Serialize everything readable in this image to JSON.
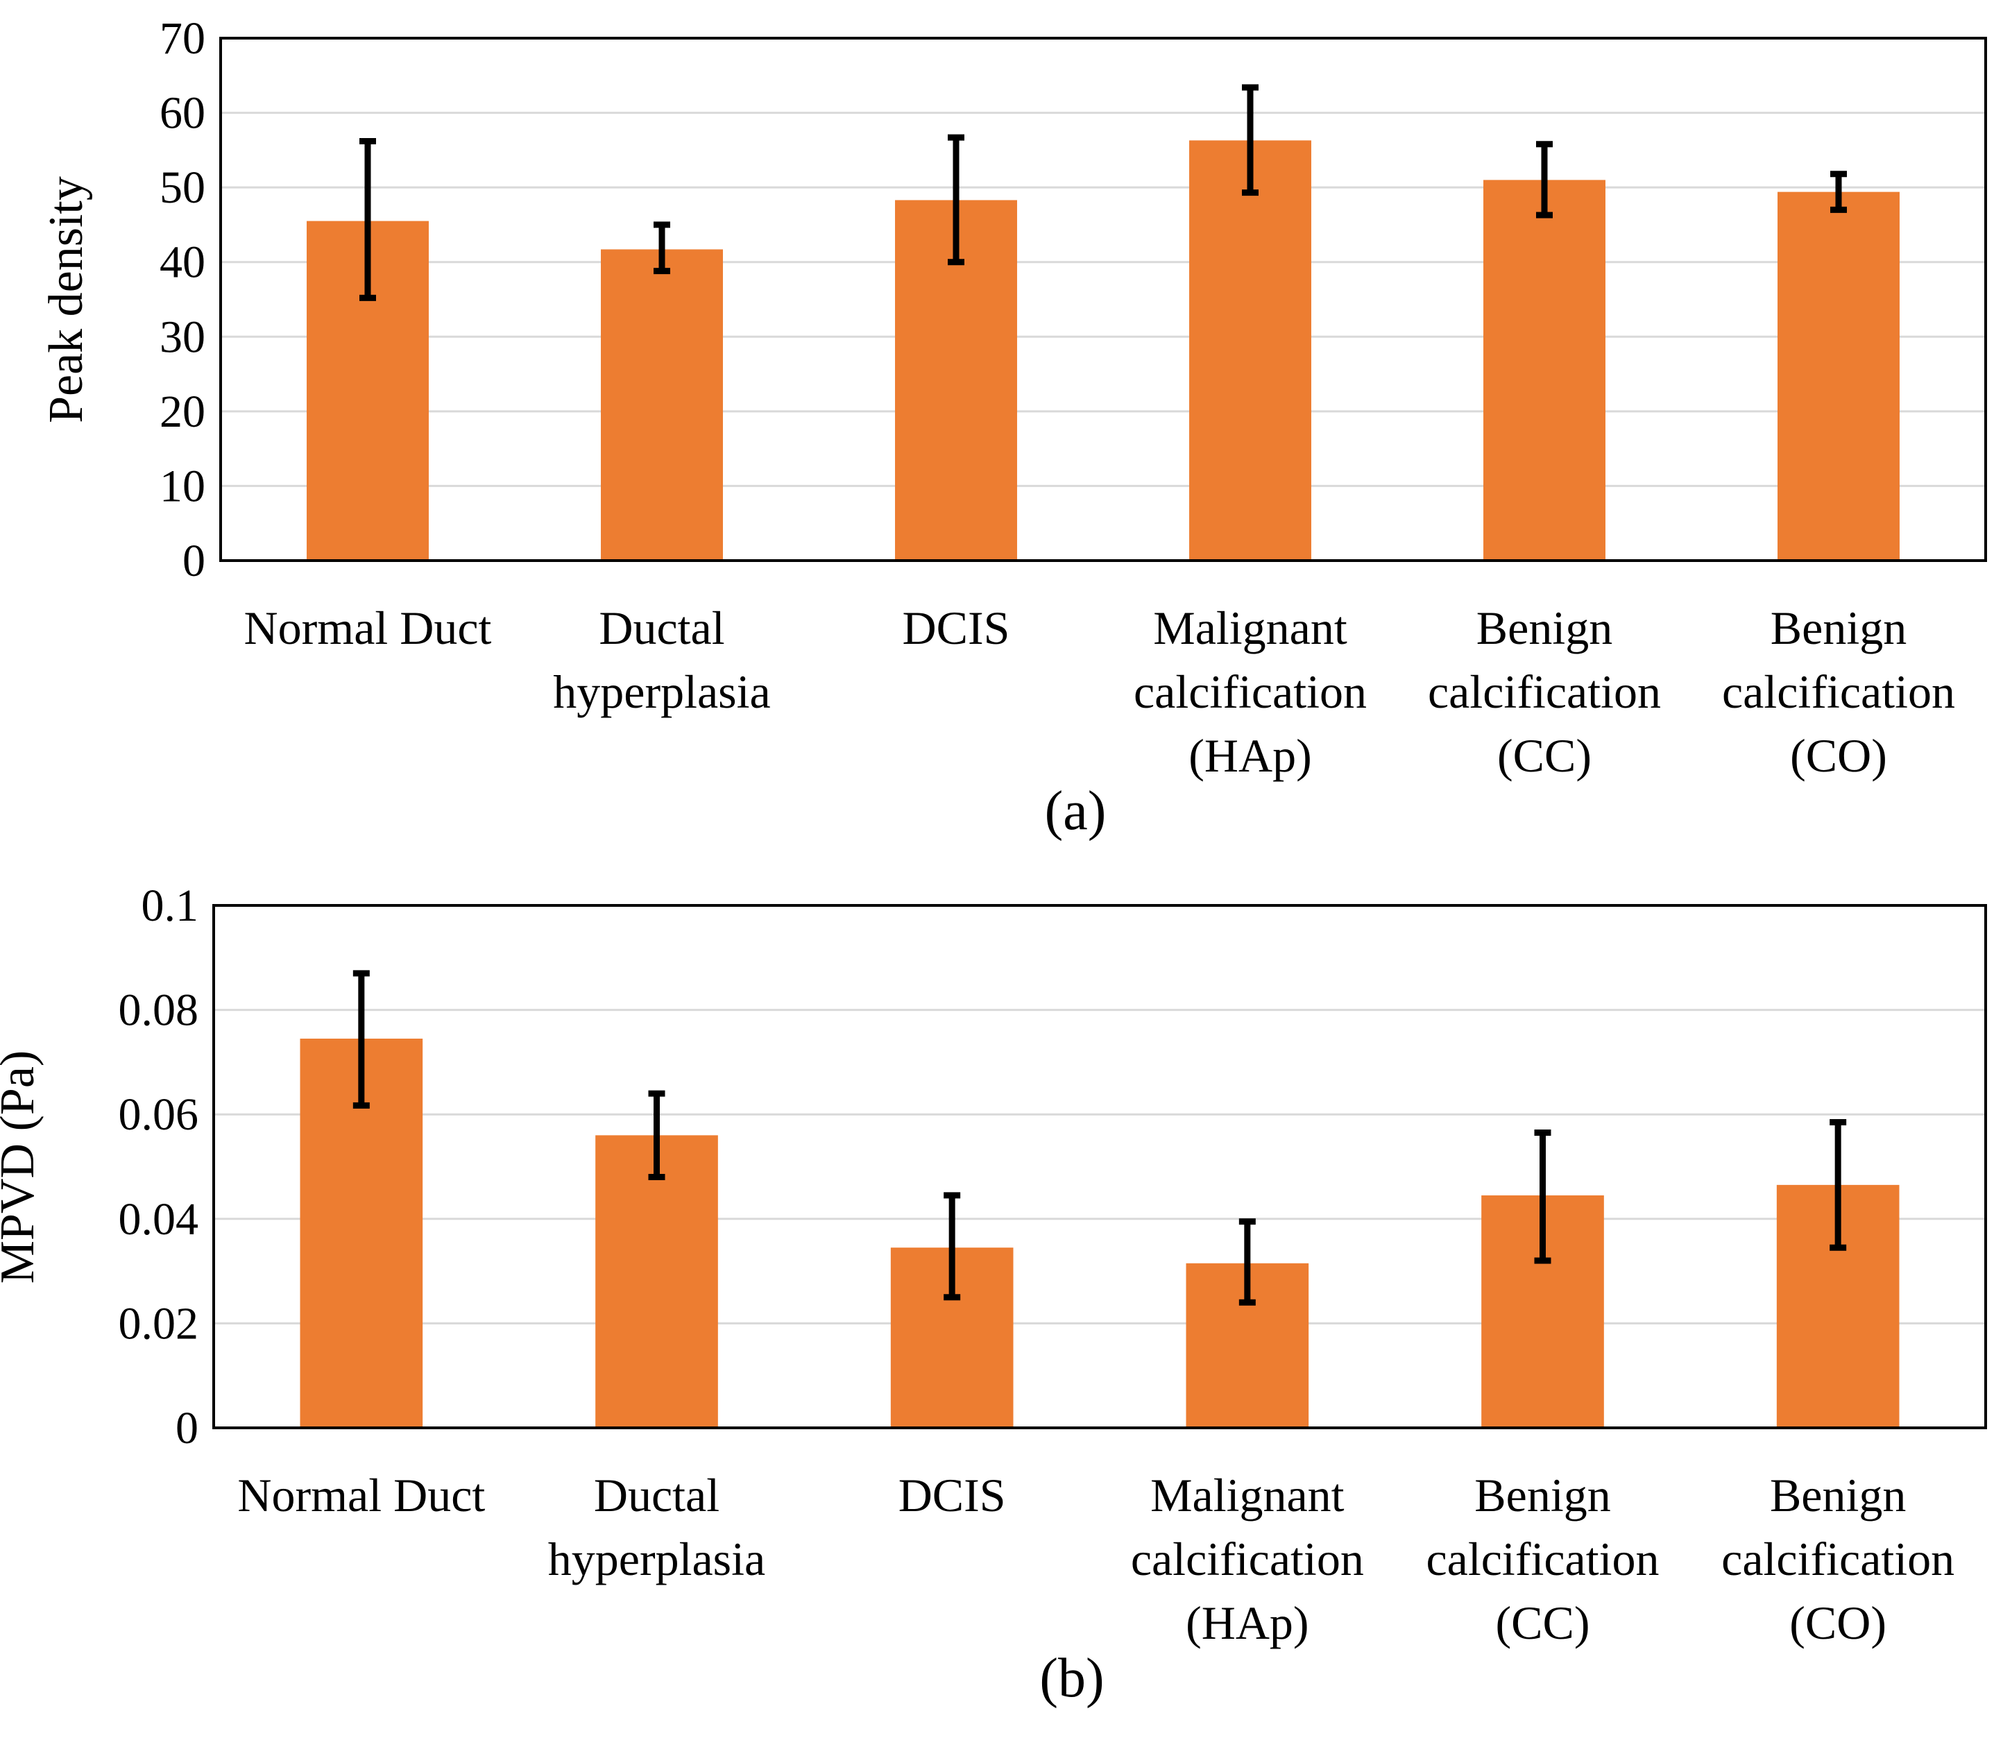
{
  "colors": {
    "bar": "#ed7d31",
    "error": "#000000",
    "grid": "#d9d9d9"
  },
  "chart_data": [
    {
      "type": "bar",
      "panel": "(a)",
      "ylabel": "Peak density",
      "xlabel": "",
      "ylim": [
        0,
        70
      ],
      "yticks": [
        "0",
        "10",
        "20",
        "30",
        "40",
        "50",
        "60",
        "70"
      ],
      "ytick_values": [
        0,
        10,
        20,
        30,
        40,
        50,
        60,
        70
      ],
      "grid": true,
      "categories": [
        [
          "Normal Duct"
        ],
        [
          "Ductal",
          "hyperplasia"
        ],
        [
          "DCIS"
        ],
        [
          "Malignant",
          "calcification",
          "(HAp)"
        ],
        [
          "Benign",
          "calcification",
          "(CC)"
        ],
        [
          "Benign",
          "calcification",
          "(CO)"
        ]
      ],
      "values": [
        45.5,
        41.7,
        48.3,
        56.3,
        51.0,
        49.4
      ],
      "error_low": [
        35.2,
        38.8,
        40.0,
        49.3,
        46.3,
        47.0
      ],
      "error_high": [
        56.2,
        45.0,
        56.7,
        63.4,
        55.8,
        51.8
      ]
    },
    {
      "type": "bar",
      "panel": "(b)",
      "ylabel": "MPVD (Pa)",
      "xlabel": "",
      "ylim": [
        0,
        0.1
      ],
      "yticks": [
        "0",
        "0.02",
        "0.04",
        "0.06",
        "0.08",
        "0.1"
      ],
      "ytick_values": [
        0,
        0.02,
        0.04,
        0.06,
        0.08,
        0.1
      ],
      "grid": true,
      "categories": [
        [
          "Normal Duct"
        ],
        [
          "Ductal",
          "hyperplasia"
        ],
        [
          "DCIS"
        ],
        [
          "Malignant",
          "calcification",
          "(HAp)"
        ],
        [
          "Benign",
          "calcification",
          "(CC)"
        ],
        [
          "Benign",
          "calcification",
          "(CO)"
        ]
      ],
      "values": [
        0.0745,
        0.056,
        0.0345,
        0.0315,
        0.0445,
        0.0465
      ],
      "error_low": [
        0.0617,
        0.048,
        0.025,
        0.024,
        0.032,
        0.0345
      ],
      "error_high": [
        0.087,
        0.064,
        0.0445,
        0.0395,
        0.0565,
        0.0585
      ]
    }
  ]
}
